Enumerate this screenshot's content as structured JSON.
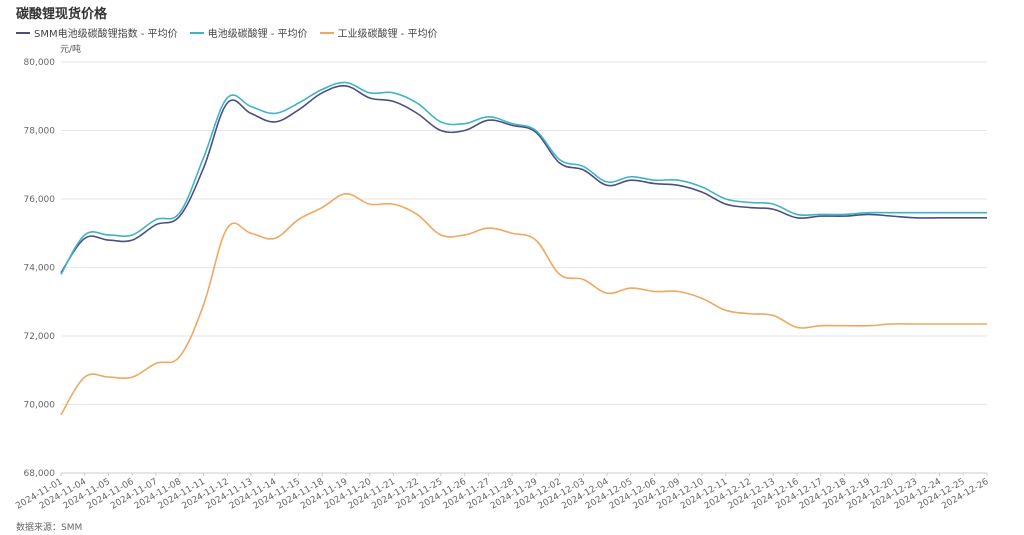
{
  "title": "碳酸锂现货价格",
  "unit_label": "元/吨",
  "source_label": "数据来源：SMM",
  "colors": {
    "smm_index": "#4a4f82",
    "battery_grade": "#3fb3c8",
    "industrial_grade": "#f0a860",
    "grid": "#e6e6e6",
    "axis": "#cccccc"
  },
  "legend": [
    {
      "label": "SMM电池级碳酸锂指数 - 平均价",
      "color": "#4a4f82"
    },
    {
      "label": "电池级碳酸锂 - 平均价",
      "color": "#3fb3c8"
    },
    {
      "label": "工业级碳酸锂 - 平均价",
      "color": "#f0a860"
    }
  ],
  "chart_data": {
    "type": "line",
    "title": "碳酸锂现货价格",
    "ylabel": "元/吨",
    "xlabel": "",
    "ylim": [
      68000,
      80000
    ],
    "yticks": [
      68000,
      70000,
      72000,
      74000,
      76000,
      78000,
      80000
    ],
    "grid": true,
    "legend_position": "top-left",
    "categories": [
      "2024-11-01",
      "2024-11-04",
      "2024-11-05",
      "2024-11-06",
      "2024-11-07",
      "2024-11-08",
      "2024-11-11",
      "2024-11-12",
      "2024-11-13",
      "2024-11-14",
      "2024-11-15",
      "2024-11-18",
      "2024-11-19",
      "2024-11-20",
      "2024-11-21",
      "2024-11-22",
      "2024-11-25",
      "2024-11-26",
      "2024-11-27",
      "2024-11-28",
      "2024-11-29",
      "2024-12-02",
      "2024-12-03",
      "2024-12-04",
      "2024-12-05",
      "2024-12-06",
      "2024-12-09",
      "2024-12-10",
      "2024-12-11",
      "2024-12-12",
      "2024-12-13",
      "2024-12-16",
      "2024-12-17",
      "2024-12-18",
      "2024-12-19",
      "2024-12-20",
      "2024-12-23",
      "2024-12-24",
      "2024-12-25",
      "2024-12-26"
    ],
    "series": [
      {
        "name": "SMM电池级碳酸锂指数 - 平均价",
        "color": "#4a4f82",
        "values": [
          73850,
          74850,
          74800,
          74800,
          75250,
          75500,
          76900,
          78800,
          78500,
          78250,
          78600,
          79100,
          79300,
          78950,
          78850,
          78500,
          78000,
          78000,
          78300,
          78150,
          77950,
          77050,
          76850,
          76400,
          76550,
          76450,
          76400,
          76200,
          75850,
          75750,
          75700,
          75450,
          75500,
          75500,
          75550,
          75500,
          75450,
          75450,
          75450,
          75450
        ]
      },
      {
        "name": "电池级碳酸锂 - 平均价",
        "color": "#3fb3c8",
        "values": [
          73800,
          74950,
          74950,
          74950,
          75400,
          75600,
          77200,
          78950,
          78700,
          78500,
          78800,
          79200,
          79400,
          79100,
          79100,
          78800,
          78250,
          78200,
          78400,
          78200,
          78000,
          77150,
          76950,
          76500,
          76650,
          76550,
          76550,
          76350,
          76000,
          75900,
          75850,
          75550,
          75550,
          75550,
          75600,
          75600,
          75600,
          75600,
          75600,
          75600
        ]
      },
      {
        "name": "工业级碳酸锂 - 平均价",
        "color": "#f0a860",
        "values": [
          69700,
          70800,
          70800,
          70800,
          71200,
          71400,
          72900,
          75150,
          75000,
          74850,
          75400,
          75750,
          76150,
          75850,
          75850,
          75550,
          74950,
          74950,
          75150,
          75000,
          74800,
          73800,
          73650,
          73250,
          73400,
          73300,
          73300,
          73100,
          72750,
          72650,
          72600,
          72250,
          72300,
          72300,
          72300,
          72350,
          72350,
          72350,
          72350,
          72350
        ]
      }
    ]
  }
}
